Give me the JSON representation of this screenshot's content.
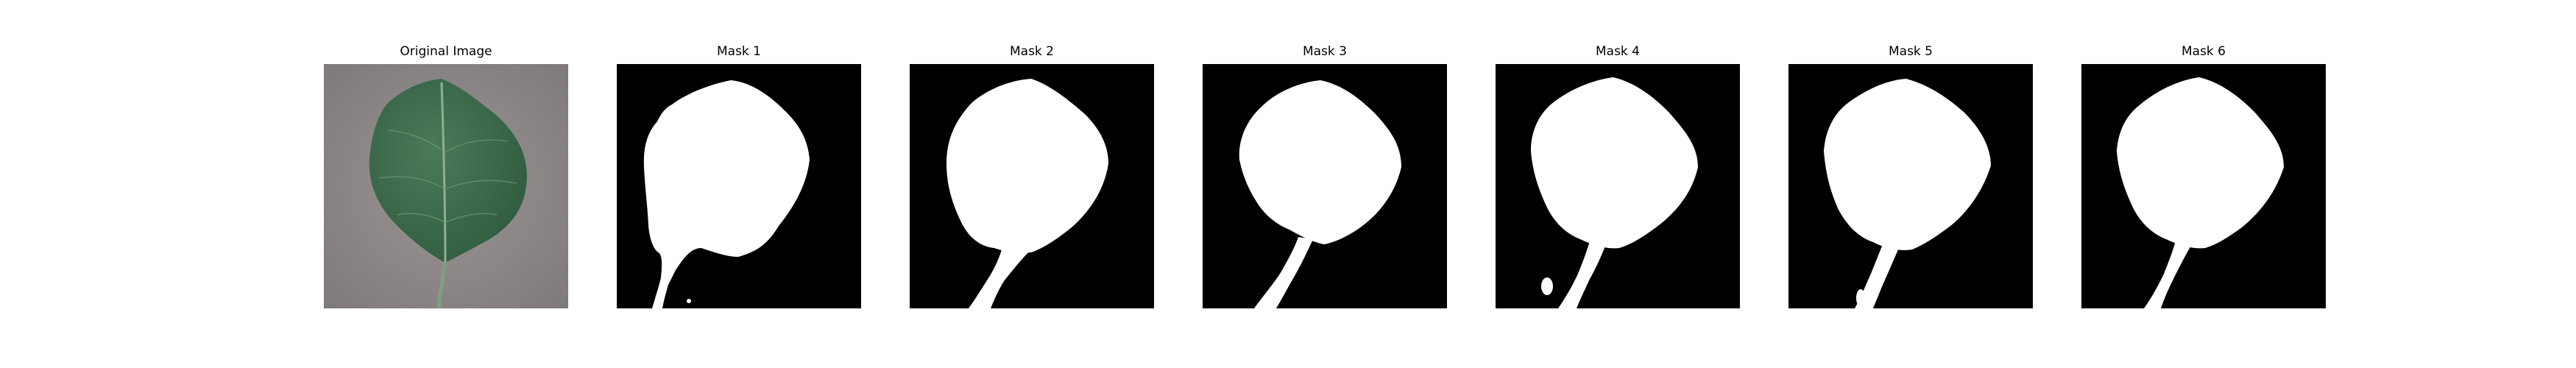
{
  "figure": {
    "panels": [
      {
        "title": "Original Image",
        "kind": "photo"
      },
      {
        "title": "Mask 1",
        "kind": "mask"
      },
      {
        "title": "Mask 2",
        "kind": "mask"
      },
      {
        "title": "Mask 3",
        "kind": "mask"
      },
      {
        "title": "Mask 4",
        "kind": "mask"
      },
      {
        "title": "Mask 5",
        "kind": "mask"
      },
      {
        "title": "Mask 6",
        "kind": "mask"
      }
    ],
    "colors": {
      "background": "#ffffff",
      "mask_background": "#000000",
      "mask_foreground": "#ffffff",
      "photo_background": "#8e8a89",
      "leaf": "#3f6a4d"
    }
  }
}
